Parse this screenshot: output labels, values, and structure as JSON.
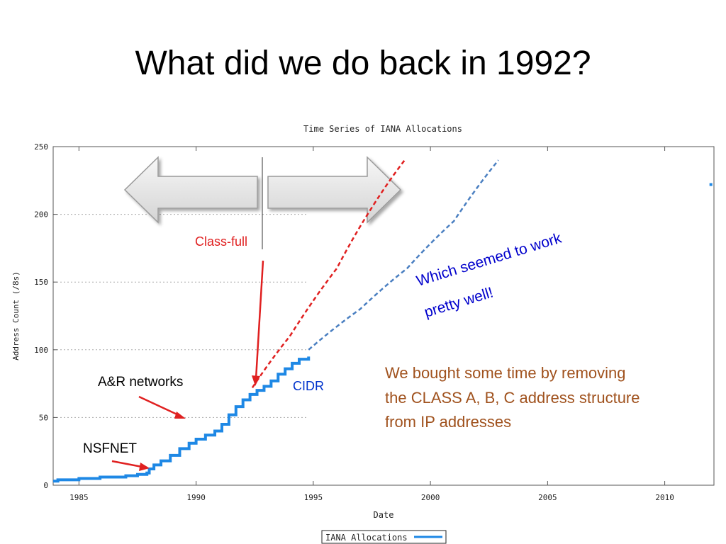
{
  "slide": {
    "title": "What did we do back in 1992?"
  },
  "chart_data": {
    "type": "line",
    "title": "Time Series of IANA Allocations",
    "xlabel": "Date",
    "ylabel": "Address Count (/8s)",
    "xlim": [
      1983.9,
      2012.1
    ],
    "ylim": [
      0,
      250
    ],
    "x_ticks": [
      "1985",
      "1990",
      "1995",
      "2000",
      "2005",
      "2010"
    ],
    "y_ticks": [
      "0",
      "50",
      "100",
      "150",
      "200",
      "250"
    ],
    "grid": true,
    "legend": {
      "placement": "bottom-center",
      "entries": [
        "IANA Allocations"
      ]
    },
    "series": [
      {
        "name": "IANA Allocations",
        "color": "#1e88e5",
        "x": [
          1983.9,
          1984.1,
          1985.0,
          1985.9,
          1986.5,
          1987.0,
          1987.5,
          1987.9,
          1988.0,
          1988.2,
          1988.5,
          1988.9,
          1989.3,
          1989.7,
          1990.0,
          1990.4,
          1990.8,
          1991.1,
          1991.4,
          1991.7,
          1992.0,
          1992.3,
          1992.6,
          1992.9,
          1993.2,
          1993.5,
          1993.8,
          1994.1,
          1994.4,
          1994.8
        ],
        "y": [
          3,
          4,
          5,
          6,
          6,
          7,
          8,
          9,
          12,
          15,
          18,
          22,
          27,
          31,
          34,
          37,
          40,
          45,
          52,
          58,
          63,
          67,
          70,
          73,
          77,
          82,
          86,
          90,
          93,
          95
        ]
      }
    ],
    "extra_series": [
      {
        "role": "class-full projection",
        "color": "#e02020",
        "x": [
          1992.4,
          1994.0,
          1996.0,
          1997.5,
          1998.9
        ],
        "y": [
          72,
          110,
          160,
          205,
          240
        ]
      },
      {
        "role": "CIDR projection",
        "color": "#4a7fc1",
        "x": [
          1994.8,
          1997.0,
          1999.0,
          2001.0,
          2002.9
        ],
        "y": [
          100,
          130,
          160,
          195,
          240
        ]
      },
      {
        "role": "outlier point",
        "color": "#1e88e5",
        "x": [
          2012.0
        ],
        "y": [
          222
        ]
      }
    ],
    "annotations": [
      {
        "id": "class-full",
        "text": "Class-full",
        "color": "#e02020"
      },
      {
        "id": "cidr",
        "text": "CIDR",
        "color": "#0033cc"
      },
      {
        "id": "worked-1",
        "text": "Which seemed to work",
        "color": "#0000cc"
      },
      {
        "id": "worked-2",
        "text": "pretty well!",
        "color": "#0000cc"
      },
      {
        "id": "ar",
        "text": "A&R networks",
        "color": "#000000"
      },
      {
        "id": "nsf",
        "text": "NSFNET",
        "color": "#000000"
      },
      {
        "id": "note-1",
        "text": "We bought some time by removing",
        "color": "#a0521e"
      },
      {
        "id": "note-2",
        "text": "the CLASS A, B, C address structure",
        "color": "#a0521e"
      },
      {
        "id": "note-3",
        "text": "from IP addresses",
        "color": "#a0521e"
      }
    ]
  }
}
